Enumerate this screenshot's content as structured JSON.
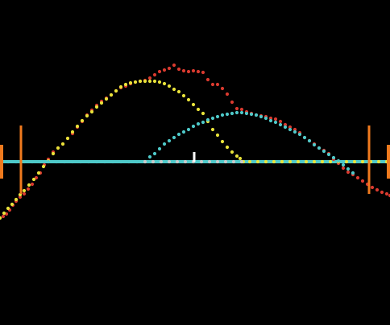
{
  "chart_data": {
    "type": "scatter",
    "title": "",
    "xlabel": "",
    "ylabel": "",
    "xlim": [
      0,
      484
    ],
    "ylim": [
      -200,
      404
    ],
    "grid": false,
    "background": "#000000",
    "series": [
      {
        "color": "#d93a2f",
        "points": [
          [
            0,
            -70
          ],
          [
            4,
            -68
          ],
          [
            8,
            -65
          ],
          [
            12,
            -60
          ],
          [
            16,
            -54
          ],
          [
            20,
            -49
          ],
          [
            25,
            -44
          ],
          [
            30,
            -40
          ],
          [
            35,
            -34
          ],
          [
            40,
            -28
          ],
          [
            45,
            -20
          ],
          [
            50,
            -14
          ],
          [
            55,
            -4
          ],
          [
            60,
            3
          ],
          [
            66,
            12
          ],
          [
            72,
            17
          ],
          [
            78,
            22
          ],
          [
            84,
            29
          ],
          [
            90,
            35
          ],
          [
            96,
            43
          ],
          [
            102,
            50
          ],
          [
            108,
            58
          ],
          [
            114,
            64
          ],
          [
            120,
            70
          ],
          [
            126,
            75
          ],
          [
            132,
            79
          ],
          [
            138,
            83
          ],
          [
            144,
            88
          ],
          [
            150,
            92
          ],
          [
            156,
            94
          ],
          [
            162,
            97
          ],
          [
            168,
            99
          ],
          [
            174,
            100
          ],
          [
            180,
            101
          ],
          [
            186,
            104
          ],
          [
            192,
            108
          ],
          [
            198,
            112
          ],
          [
            204,
            114
          ],
          [
            210,
            116
          ],
          [
            216,
            120
          ],
          [
            222,
            115
          ],
          [
            228,
            113
          ],
          [
            234,
            112
          ],
          [
            240,
            113
          ],
          [
            246,
            112
          ],
          [
            252,
            111
          ],
          [
            258,
            102
          ],
          [
            264,
            96
          ],
          [
            270,
            96
          ],
          [
            276,
            91
          ],
          [
            282,
            84
          ],
          [
            288,
            74
          ],
          [
            294,
            66
          ],
          [
            300,
            65
          ],
          [
            306,
            62
          ],
          [
            312,
            60
          ],
          [
            318,
            58
          ],
          [
            324,
            57
          ],
          [
            330,
            56
          ],
          [
            336,
            54
          ],
          [
            342,
            53
          ],
          [
            348,
            50
          ],
          [
            354,
            46
          ],
          [
            360,
            43
          ],
          [
            366,
            40
          ],
          [
            372,
            36
          ],
          [
            378,
            30
          ],
          [
            384,
            26
          ],
          [
            390,
            22
          ],
          [
            396,
            17
          ],
          [
            402,
            14
          ],
          [
            408,
            10
          ],
          [
            414,
            3
          ],
          [
            420,
            -2
          ],
          [
            426,
            -8
          ],
          [
            432,
            -13
          ],
          [
            438,
            -16
          ],
          [
            444,
            -20
          ],
          [
            450,
            -24
          ],
          [
            456,
            -28
          ],
          [
            462,
            -32
          ],
          [
            468,
            -35
          ],
          [
            474,
            -38
          ],
          [
            480,
            -40
          ],
          [
            484,
            -42
          ]
        ]
      },
      {
        "color": "#e8e23a",
        "points": [
          [
            0,
            -70
          ],
          [
            5,
            -64
          ],
          [
            10,
            -58
          ],
          [
            15,
            -53
          ],
          [
            20,
            -47
          ],
          [
            25,
            -41
          ],
          [
            30,
            -36
          ],
          [
            36,
            -29
          ],
          [
            42,
            -22
          ],
          [
            48,
            -14
          ],
          [
            54,
            -6
          ],
          [
            60,
            1
          ],
          [
            66,
            10
          ],
          [
            72,
            17
          ],
          [
            78,
            22
          ],
          [
            84,
            29
          ],
          [
            90,
            37
          ],
          [
            96,
            44
          ],
          [
            102,
            51
          ],
          [
            108,
            57
          ],
          [
            114,
            62
          ],
          [
            120,
            68
          ],
          [
            126,
            73
          ],
          [
            132,
            78
          ],
          [
            138,
            83
          ],
          [
            144,
            88
          ],
          [
            150,
            93
          ],
          [
            156,
            96
          ],
          [
            162,
            98
          ],
          [
            168,
            99
          ],
          [
            174,
            100
          ],
          [
            180,
            100
          ],
          [
            186,
            100
          ],
          [
            192,
            100
          ],
          [
            198,
            99
          ],
          [
            204,
            97
          ],
          [
            210,
            94
          ],
          [
            216,
            90
          ],
          [
            222,
            87
          ],
          [
            228,
            82
          ],
          [
            234,
            77
          ],
          [
            240,
            71
          ],
          [
            246,
            65
          ],
          [
            252,
            60
          ],
          [
            258,
            50
          ],
          [
            264,
            40
          ],
          [
            270,
            33
          ],
          [
            276,
            25
          ],
          [
            282,
            18
          ],
          [
            288,
            12
          ],
          [
            294,
            7
          ],
          [
            298,
            4
          ],
          [
            302,
            0
          ],
          [
            310,
            0
          ],
          [
            320,
            0
          ],
          [
            330,
            0
          ],
          [
            340,
            0
          ],
          [
            350,
            0
          ],
          [
            360,
            0
          ],
          [
            370,
            0
          ],
          [
            380,
            0
          ],
          [
            390,
            0
          ],
          [
            400,
            0
          ],
          [
            410,
            0
          ],
          [
            420,
            0
          ],
          [
            430,
            0
          ],
          [
            440,
            0
          ],
          [
            450,
            0
          ],
          [
            460,
            0
          ],
          [
            470,
            0
          ],
          [
            480,
            0
          ],
          [
            484,
            0
          ]
        ]
      },
      {
        "color": "#4ec9c9",
        "points": [
          [
            0,
            0
          ],
          [
            10,
            0
          ],
          [
            20,
            0
          ],
          [
            30,
            0
          ],
          [
            40,
            0
          ],
          [
            50,
            0
          ],
          [
            60,
            0
          ],
          [
            70,
            0
          ],
          [
            80,
            0
          ],
          [
            90,
            0
          ],
          [
            100,
            0
          ],
          [
            110,
            0
          ],
          [
            120,
            0
          ],
          [
            130,
            0
          ],
          [
            140,
            0
          ],
          [
            150,
            0
          ],
          [
            160,
            0
          ],
          [
            170,
            0
          ],
          [
            180,
            0
          ],
          [
            186,
            6
          ],
          [
            192,
            10
          ],
          [
            198,
            16
          ],
          [
            204,
            22
          ],
          [
            210,
            26
          ],
          [
            216,
            30
          ],
          [
            222,
            34
          ],
          [
            228,
            37
          ],
          [
            234,
            40
          ],
          [
            240,
            44
          ],
          [
            246,
            47
          ],
          [
            252,
            49
          ],
          [
            258,
            52
          ],
          [
            264,
            54
          ],
          [
            270,
            56
          ],
          [
            276,
            58
          ],
          [
            282,
            59
          ],
          [
            288,
            60
          ],
          [
            294,
            61
          ],
          [
            300,
            61
          ],
          [
            306,
            60
          ],
          [
            312,
            59
          ],
          [
            318,
            58
          ],
          [
            324,
            56
          ],
          [
            330,
            54
          ],
          [
            336,
            51
          ],
          [
            342,
            49
          ],
          [
            348,
            46
          ],
          [
            354,
            43
          ],
          [
            360,
            40
          ],
          [
            366,
            37
          ],
          [
            372,
            34
          ],
          [
            378,
            30
          ],
          [
            384,
            26
          ],
          [
            390,
            21
          ],
          [
            396,
            17
          ],
          [
            402,
            13
          ],
          [
            408,
            9
          ],
          [
            414,
            5
          ],
          [
            420,
            1
          ],
          [
            426,
            -4
          ],
          [
            432,
            -9
          ],
          [
            438,
            -14
          ]
        ]
      },
      {
        "color": "#c8c8c8",
        "points": [
          [
            180,
            0
          ],
          [
            190,
            0
          ],
          [
            200,
            0
          ],
          [
            210,
            0
          ],
          [
            220,
            0
          ],
          [
            230,
            0
          ],
          [
            240,
            0
          ],
          [
            250,
            0
          ],
          [
            260,
            0
          ],
          [
            270,
            0
          ],
          [
            280,
            0
          ],
          [
            290,
            0
          ],
          [
            300,
            0
          ]
        ]
      }
    ],
    "reference_lines": {
      "baseline_y": 0,
      "baseline_color": "#4ec9c9",
      "vertical_markers": [
        {
          "x": 26,
          "ymin": -40,
          "ymax": 45,
          "color": "#f07a1e"
        },
        {
          "x": 458,
          "ymin": -40,
          "ymax": 45,
          "color": "#f07a1e"
        }
      ],
      "edge_markers": [
        {
          "x": 0,
          "ymin": -21,
          "ymax": 21,
          "color": "#f07a1e"
        },
        {
          "x": 484,
          "ymin": -21,
          "ymax": 21,
          "color": "#f07a1e"
        }
      ],
      "center_tick": {
        "x": 241,
        "ymin": 0,
        "ymax": 12,
        "color": "#ffffff"
      }
    }
  }
}
